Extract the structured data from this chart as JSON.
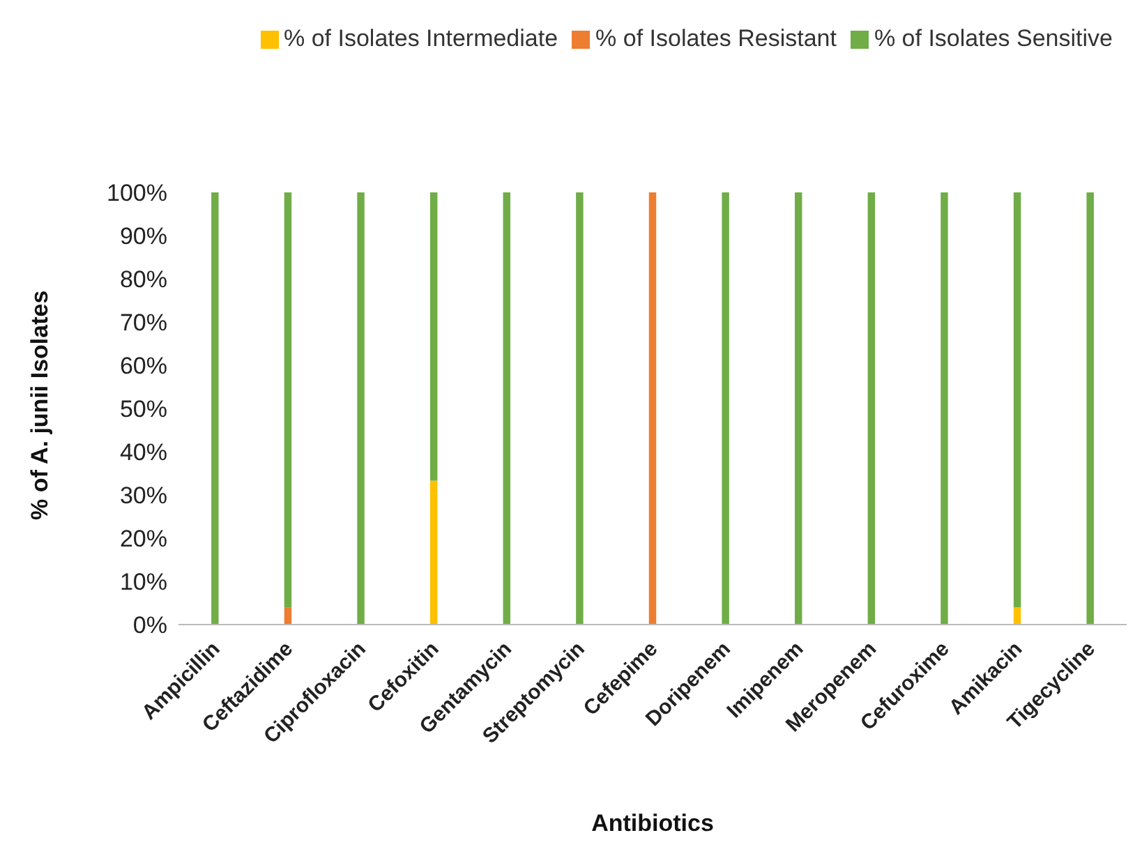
{
  "chart_data": {
    "type": "bar",
    "stacked": true,
    "xlabel": "Antibiotics",
    "ylabel": "% of A. junii Isolates",
    "categories": [
      "Ampicillin",
      "Ceftazidime",
      "Ciprofloxacin",
      "Cefoxitin",
      "Gentamycin",
      "Streptomycin",
      "Cefepime",
      "Doripenem",
      "Imipenem",
      "Meropenem",
      "Cefuroxime",
      "Amikacin",
      "Tigecycline"
    ],
    "series": [
      {
        "name": "% of Isolates Resistant",
        "color": "#ed7d31",
        "values": [
          0,
          4,
          0,
          0,
          0,
          0,
          100,
          0,
          0,
          0,
          0,
          0,
          0
        ]
      },
      {
        "name": "% of Isolates Intermediate",
        "color": "#ffc000",
        "values": [
          0,
          0,
          0,
          33.3,
          0,
          0,
          0,
          0,
          0,
          0,
          0,
          4,
          0
        ]
      },
      {
        "name": "% of Isolates Sensitive",
        "color": "#70ad47",
        "values": [
          100,
          96,
          100,
          66.7,
          100,
          100,
          0,
          100,
          100,
          100,
          100,
          96,
          100
        ]
      }
    ],
    "ylim": [
      0,
      100
    ],
    "yticks": [
      {
        "value": 0,
        "label": "0%"
      },
      {
        "value": 10,
        "label": "10%"
      },
      {
        "value": 20,
        "label": "20%"
      },
      {
        "value": 30,
        "label": "30%"
      },
      {
        "value": 40,
        "label": "40%"
      },
      {
        "value": 50,
        "label": "50%"
      },
      {
        "value": 60,
        "label": "60%"
      },
      {
        "value": 70,
        "label": "70%"
      },
      {
        "value": 80,
        "label": "80%"
      },
      {
        "value": 90,
        "label": "90%"
      },
      {
        "value": 100,
        "label": "100%"
      }
    ],
    "legend": "top right",
    "grid": false
  }
}
